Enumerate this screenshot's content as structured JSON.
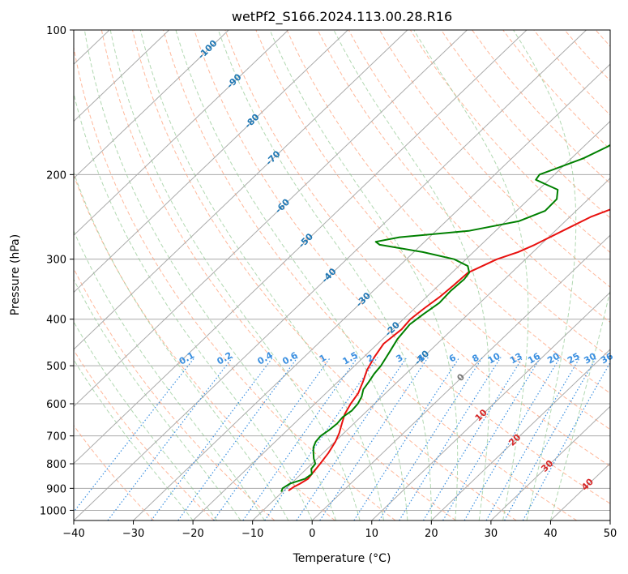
{
  "chart_data": {
    "type": "line",
    "title": "wetPf2_S166.2024.113.00.28.R16",
    "xlabel": "Temperature (°C)",
    "ylabel": "Pressure (hPa)",
    "xlim": [
      -40,
      50
    ],
    "ylim": [
      1050,
      100
    ],
    "y_scale": "log",
    "x_ticks": [
      -40,
      -30,
      -20,
      -10,
      0,
      10,
      20,
      30,
      40,
      50
    ],
    "x_tick_labels": [
      "−40",
      "−30",
      "−20",
      "−10",
      "0",
      "10",
      "20",
      "30",
      "40",
      "50"
    ],
    "y_ticks": [
      100,
      200,
      300,
      400,
      500,
      600,
      700,
      800,
      900,
      1000
    ],
    "y_tick_labels": [
      "100",
      "200",
      "300",
      "400",
      "500",
      "600",
      "700",
      "800",
      "900",
      "1000"
    ],
    "grid": true,
    "colors": {
      "temperature": "#e8110f",
      "dewpoint": "#008000",
      "isotherm": "#aaaaaa",
      "dry_adiabat": "#ffa07a",
      "moist_adiabat": "#90c890",
      "mixing_ratio": "#3a8fe0",
      "label_blue": "#1f77b4",
      "label_red": "#d62728"
    },
    "series": [
      {
        "key": "temperature",
        "pressure": [
          910,
          895,
          880,
          860,
          840,
          800,
          760,
          720,
          690,
          660,
          630,
          600,
          570,
          540,
          510,
          480,
          450,
          420,
          400,
          380,
          360,
          340,
          320,
          300,
          290,
          280,
          260,
          245,
          230,
          215,
          200,
          180,
          160,
          145,
          130,
          115,
          108,
          100
        ],
        "temperature": [
          -9.2,
          -9.0,
          -8.5,
          -8.0,
          -8.2,
          -8.6,
          -9.1,
          -9.9,
          -10.8,
          -12.0,
          -13.2,
          -14.0,
          -14.6,
          -15.8,
          -17.2,
          -18.2,
          -19.0,
          -18.5,
          -18.8,
          -18.4,
          -17.8,
          -17.5,
          -17.3,
          -14.8,
          -12.5,
          -11.0,
          -8.5,
          -6.5,
          -3.0,
          0.0,
          2.5,
          5.8,
          10.0,
          13.8,
          15.8,
          19.0,
          20.5,
          22.5
        ]
      },
      {
        "key": "dewpoint",
        "pressure": [
          915,
          900,
          880,
          860,
          840,
          820,
          800,
          780,
          760,
          740,
          720,
          700,
          680,
          660,
          640,
          620,
          600,
          580,
          560,
          540,
          520,
          500,
          470,
          440,
          410,
          390,
          370,
          350,
          330,
          320,
          310,
          300,
          290,
          280,
          276,
          270,
          262,
          250,
          238,
          225,
          215,
          210,
          205,
          200,
          195,
          185,
          175,
          160,
          145,
          130,
          115,
          108,
          100
        ],
        "dewpoint": [
          -10.2,
          -10.6,
          -10.2,
          -8.5,
          -8.2,
          -9.2,
          -9.4,
          -10.6,
          -11.6,
          -12.6,
          -13.2,
          -13.4,
          -13.0,
          -12.8,
          -13.0,
          -12.6,
          -12.8,
          -13.4,
          -14.4,
          -14.8,
          -15.3,
          -15.6,
          -16.5,
          -17.5,
          -18.0,
          -17.5,
          -16.8,
          -17.0,
          -16.8,
          -17.1,
          -18.5,
          -22.0,
          -28.5,
          -37.0,
          -38.2,
          -35.0,
          -24.5,
          -17.8,
          -15.2,
          -15.3,
          -16.8,
          -19.5,
          -22.2,
          -22.5,
          -21.0,
          -18.0,
          -16.0,
          -14.0,
          -12.8,
          -11.2,
          -8.8,
          -7.8,
          -6.5
        ]
      }
    ],
    "isotherm_labels": [
      -100,
      -90,
      -80,
      -70,
      -60,
      -50,
      -40,
      -30,
      -20,
      -10,
      0,
      10,
      20,
      30,
      40
    ],
    "mixing_ratio_labels": [
      "0.1",
      "0.2",
      "0.4",
      "0.6",
      "1",
      "1.5",
      "2",
      "3",
      "4",
      "6",
      "8",
      "10",
      "13",
      "16",
      "20",
      "25",
      "30",
      "36"
    ]
  }
}
